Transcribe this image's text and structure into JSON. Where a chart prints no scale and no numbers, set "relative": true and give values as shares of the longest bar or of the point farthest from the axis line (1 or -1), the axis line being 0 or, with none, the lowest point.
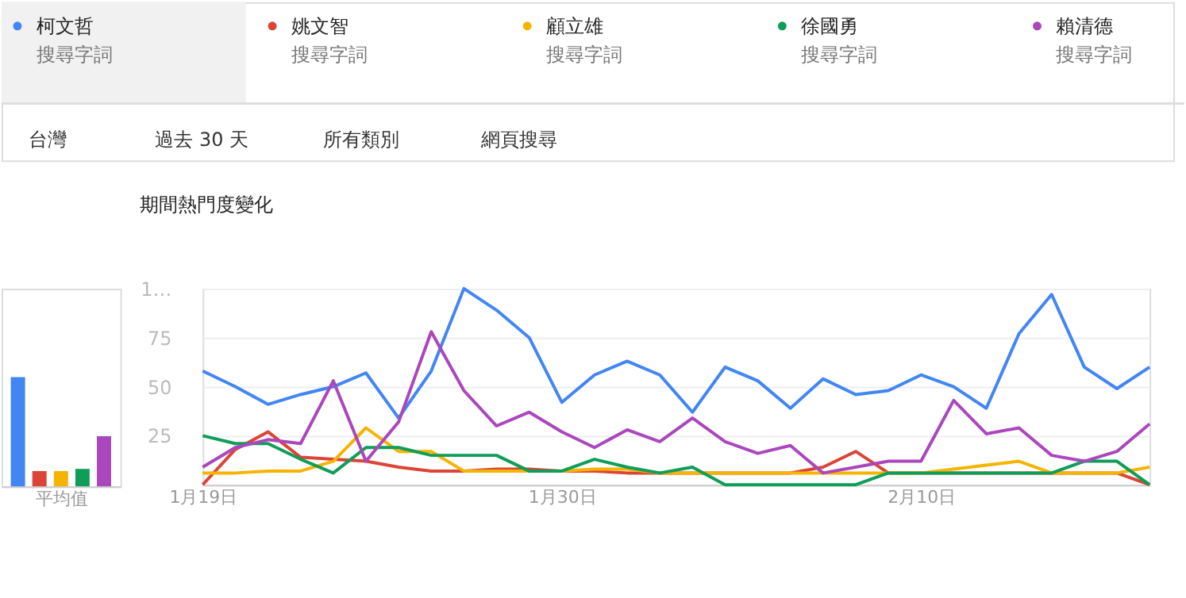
{
  "chart_data": [
    {
      "type": "bar",
      "relative": true,
      "categories": [
        null,
        null,
        null,
        null,
        null
      ],
      "values": [
        1,
        0.14,
        0.14,
        0.16,
        0.46
      ],
      "colors": [
        "#4285f4",
        "#db4437",
        "#f4b400",
        "#0f9d58",
        "#ab47bc"
      ],
      "xlabel": "平均值"
    },
    {
      "type": "line",
      "title": "期間熱門度變化",
      "legend": "top",
      "grid": "y",
      "marker": "none",
      "line_style": "solid",
      "x": [
        "--01-19",
        "--01-20",
        "--01-21",
        "--01-22",
        "--01-23",
        "--01-24",
        "--01-25",
        "--01-26",
        "--01-27",
        "--01-28",
        "--01-29",
        "--01-30",
        "--01-31",
        "--02-01",
        "--02-02",
        "--02-03",
        "--02-04",
        "--02-05",
        "--02-06",
        "--02-07",
        "--02-08",
        "--02-09",
        "--02-10",
        "--02-11",
        "--02-12",
        "--02-13",
        "--02-14",
        "--02-15",
        "--02-16",
        "--02-17"
      ],
      "xlim": [
        "--01-19",
        "--02-17"
      ],
      "xticks": [
        {
          "value": "--01-19",
          "label": "1月19日"
        },
        {
          "value": "--01-30",
          "label": "1月30日"
        },
        {
          "value": "--02-10",
          "label": "2月10日"
        }
      ],
      "ylim": [
        0,
        100
      ],
      "yticks": [
        25,
        50,
        75,
        {
          "value": 100,
          "label": "1…"
        }
      ],
      "series": [
        {
          "name": "柯文哲",
          "color": "#4285f4",
          "values": [
            58,
            50,
            41,
            46,
            50,
            57,
            34,
            58,
            100,
            89,
            75,
            42,
            56,
            63,
            56,
            37,
            60,
            53,
            39,
            54,
            46,
            48,
            56,
            50,
            39,
            77,
            97,
            60,
            49,
            60
          ]
        },
        {
          "name": "姚文智",
          "color": "#db4437",
          "values": [
            0,
            18,
            27,
            14,
            13,
            12,
            9,
            7,
            7,
            8,
            8,
            7,
            7,
            6,
            6,
            6,
            6,
            6,
            6,
            9,
            17,
            6,
            6,
            6,
            6,
            6,
            6,
            6,
            6,
            0
          ]
        },
        {
          "name": "顧立雄",
          "color": "#f4b400",
          "values": [
            6,
            6,
            7,
            7,
            12,
            29,
            17,
            17,
            7,
            7,
            7,
            7,
            8,
            8,
            6,
            6,
            6,
            6,
            6,
            6,
            6,
            6,
            6,
            8,
            10,
            12,
            6,
            6,
            6,
            9
          ]
        },
        {
          "name": "徐國勇",
          "color": "#0f9d58",
          "values": [
            25,
            21,
            21,
            13,
            6,
            19,
            19,
            15,
            15,
            15,
            7,
            7,
            13,
            9,
            6,
            9,
            0,
            0,
            0,
            0,
            0,
            6,
            6,
            6,
            6,
            6,
            6,
            12,
            12,
            0
          ]
        },
        {
          "name": "賴清德",
          "color": "#ab47bc",
          "values": [
            9,
            19,
            23,
            21,
            53,
            12,
            32,
            78,
            48,
            30,
            37,
            27,
            19,
            28,
            22,
            34,
            22,
            16,
            20,
            6,
            9,
            12,
            12,
            43,
            26,
            29,
            15,
            12,
            17,
            31
          ]
        }
      ],
      "annotations": [
        "搜尋字詞",
        "搜尋字詞",
        "搜尋字詞",
        "搜尋字詞",
        "搜尋字詞",
        "台灣",
        "過去 30 天",
        "所有類別",
        "網頁搜尋"
      ]
    }
  ]
}
